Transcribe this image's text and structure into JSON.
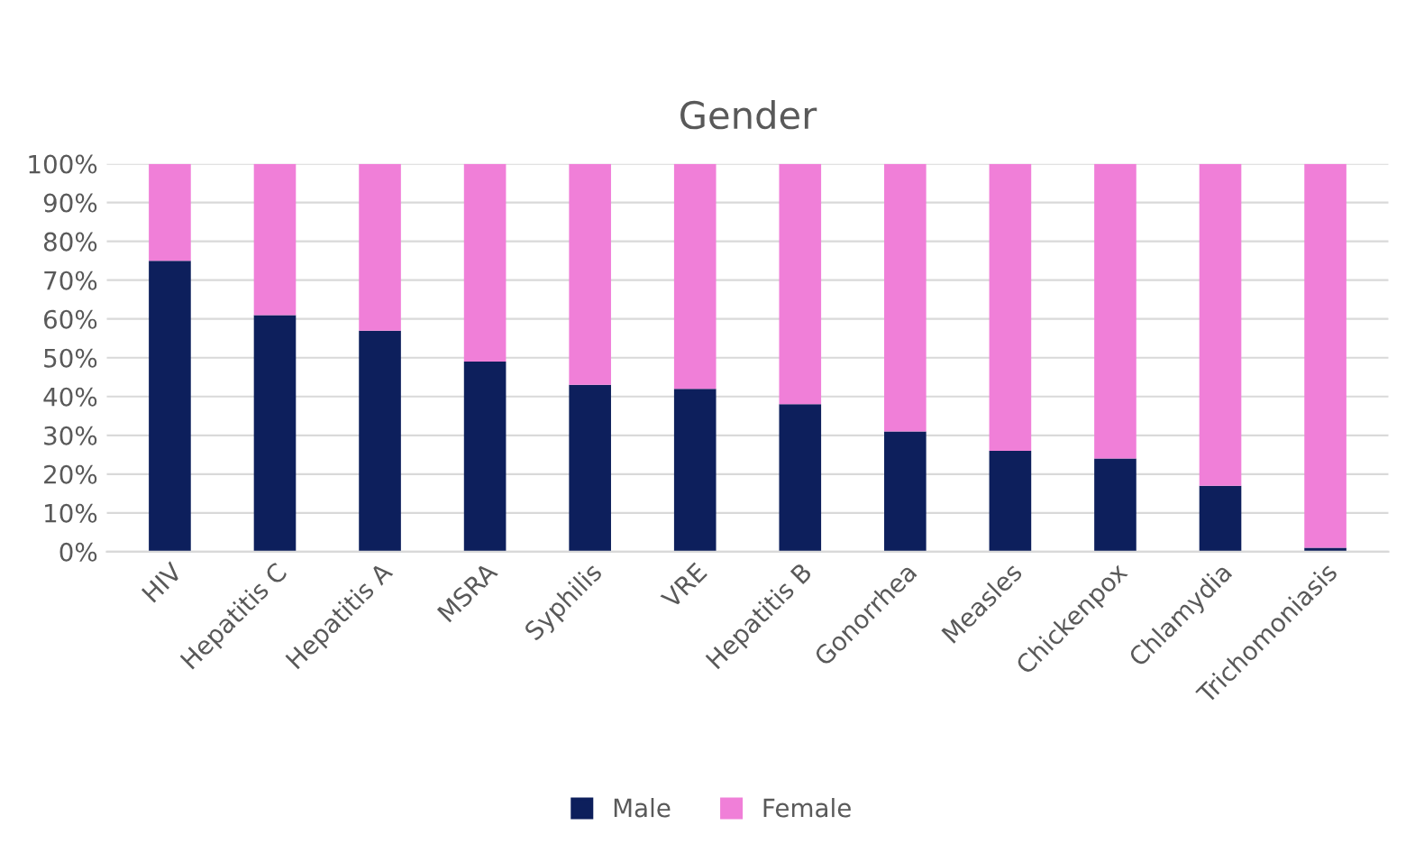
{
  "chart_data": {
    "type": "bar",
    "title": "Gender",
    "stacked": true,
    "categories": [
      "HIV",
      "Hepatitis C",
      "Hepatitis A",
      "MSRA",
      "Syphilis",
      "VRE",
      "Hepatitis B",
      "Gonorrhea",
      "Measles",
      "Chickenpox",
      "Chlamydia",
      "Trichomoniasis"
    ],
    "series": [
      {
        "name": "Male",
        "color": "#0d1f5c",
        "values": [
          75,
          61,
          57,
          49,
          43,
          42,
          38,
          31,
          26,
          24,
          17,
          1
        ]
      },
      {
        "name": "Female",
        "color": "#f07fd8",
        "values": [
          25,
          39,
          43,
          51,
          57,
          58,
          62,
          69,
          74,
          76,
          83,
          99
        ]
      }
    ],
    "ylim": [
      0,
      100
    ],
    "yticks": [
      {
        "value": 0,
        "label": "0%"
      },
      {
        "value": 10,
        "label": "10%"
      },
      {
        "value": 20,
        "label": "20%"
      },
      {
        "value": 30,
        "label": "30%"
      },
      {
        "value": 40,
        "label": "40%"
      },
      {
        "value": 50,
        "label": "50%"
      },
      {
        "value": 60,
        "label": "60%"
      },
      {
        "value": 70,
        "label": "70%"
      },
      {
        "value": 80,
        "label": "80%"
      },
      {
        "value": 90,
        "label": "90%"
      },
      {
        "value": 100,
        "label": "100%"
      }
    ],
    "grid": "y",
    "legend": "bottom"
  }
}
